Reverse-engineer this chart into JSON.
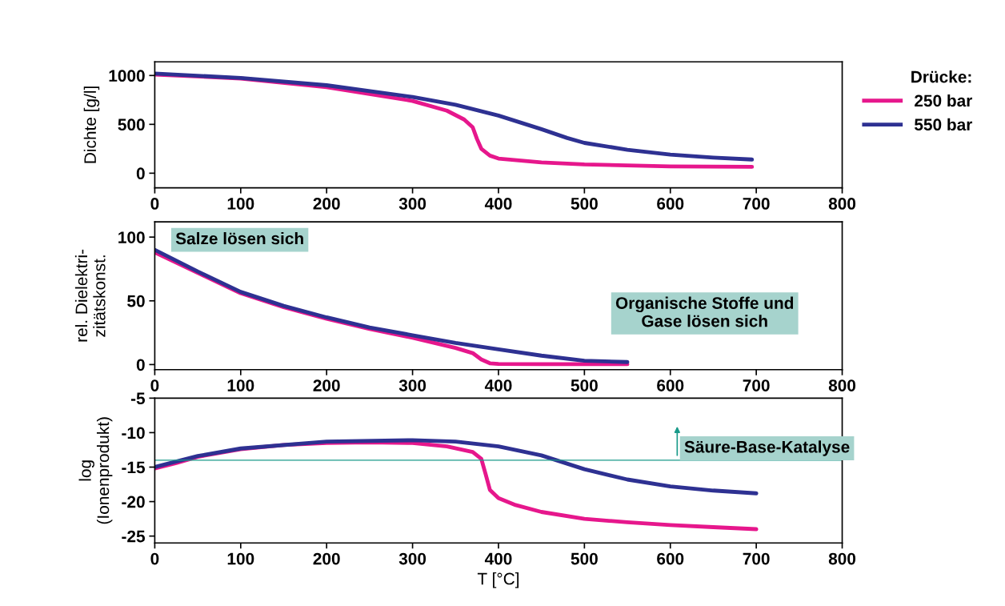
{
  "chart_data": [
    {
      "type": "line",
      "ylabel": "Dichte [g/l]",
      "legend": "top right",
      "legend_title": "Drücke:",
      "xlim": [
        0,
        800
      ],
      "xticks": [
        0,
        100,
        200,
        300,
        400,
        500,
        600,
        700,
        800
      ],
      "ylim": [
        -150,
        1140
      ],
      "yticks": [
        0,
        500,
        1000
      ],
      "grid": false,
      "marker": "none",
      "line_style": "solid",
      "series": [
        {
          "name": "250 bar",
          "color": "#e6178c",
          "x": [
            0,
            100,
            200,
            300,
            340,
            360,
            370,
            375,
            380,
            390,
            400,
            450,
            500,
            600,
            695
          ],
          "values": [
            1010,
            970,
            880,
            740,
            640,
            550,
            470,
            350,
            250,
            180,
            150,
            110,
            90,
            70,
            65
          ]
        },
        {
          "name": "550 bar",
          "color": "#2e3192",
          "x": [
            0,
            100,
            200,
            300,
            350,
            400,
            450,
            480,
            500,
            550,
            600,
            650,
            695
          ],
          "values": [
            1020,
            975,
            900,
            780,
            700,
            590,
            450,
            360,
            310,
            240,
            190,
            160,
            140
          ]
        }
      ]
    },
    {
      "type": "line",
      "ylabel": "rel. Dielektri-\nzitätskonst.",
      "xlim": [
        0,
        800
      ],
      "xticks": [
        0,
        100,
        200,
        300,
        400,
        500,
        600,
        700,
        800
      ],
      "ylim": [
        -4,
        112
      ],
      "yticks": [
        0,
        50,
        100
      ],
      "grid": false,
      "marker": "none",
      "line_style": "solid",
      "annotations": [
        "Salze lösen sich",
        "Organische Stoffe und\nGase lösen sich"
      ],
      "series": [
        {
          "color": "#e6178c",
          "x": [
            0,
            50,
            100,
            150,
            200,
            250,
            300,
            350,
            370,
            380,
            390,
            400,
            450,
            550
          ],
          "values": [
            88,
            72,
            56,
            45,
            36,
            28,
            21,
            13,
            9,
            4,
            1,
            0.5,
            0.3,
            0.3
          ]
        },
        {
          "color": "#2e3192",
          "x": [
            0,
            50,
            100,
            150,
            200,
            250,
            300,
            350,
            400,
            450,
            500,
            550
          ],
          "values": [
            90,
            73,
            57,
            46,
            37,
            29,
            23,
            17,
            12,
            7,
            3,
            2
          ]
        }
      ]
    },
    {
      "type": "line",
      "ylabel": "log\n(Ionenprodukt)",
      "xlabel": "T [°C]",
      "xlim": [
        0,
        800
      ],
      "xticks": [
        0,
        100,
        200,
        300,
        400,
        500,
        600,
        700,
        800
      ],
      "ylim": [
        -26,
        -5
      ],
      "yticks": [
        -25,
        -20,
        -15,
        -10,
        -5
      ],
      "grid": false,
      "marker": "none",
      "line_style": "solid",
      "ref_lines": [
        {
          "axis": "y",
          "value": -14,
          "label": "Säure-Base-Katalyse",
          "color": "#1a9a8a",
          "line_style": "solid"
        }
      ],
      "series": [
        {
          "color": "#e6178c",
          "x": [
            0,
            25,
            50,
            100,
            150,
            200,
            250,
            300,
            340,
            370,
            380,
            385,
            390,
            400,
            420,
            450,
            500,
            550,
            600,
            650,
            700
          ],
          "values": [
            -15.2,
            -14.4,
            -13.5,
            -12.4,
            -11.8,
            -11.5,
            -11.4,
            -11.5,
            -12,
            -12.8,
            -13.8,
            -16,
            -18.3,
            -19.5,
            -20.5,
            -21.5,
            -22.5,
            -23,
            -23.4,
            -23.7,
            -24
          ]
        },
        {
          "color": "#2e3192",
          "x": [
            0,
            50,
            100,
            200,
            300,
            350,
            400,
            450,
            500,
            550,
            600,
            650,
            700
          ],
          "values": [
            -15,
            -13.4,
            -12.3,
            -11.3,
            -11.1,
            -11.3,
            -12,
            -13.3,
            -15.3,
            -16.8,
            -17.8,
            -18.4,
            -18.8
          ]
        }
      ]
    }
  ]
}
